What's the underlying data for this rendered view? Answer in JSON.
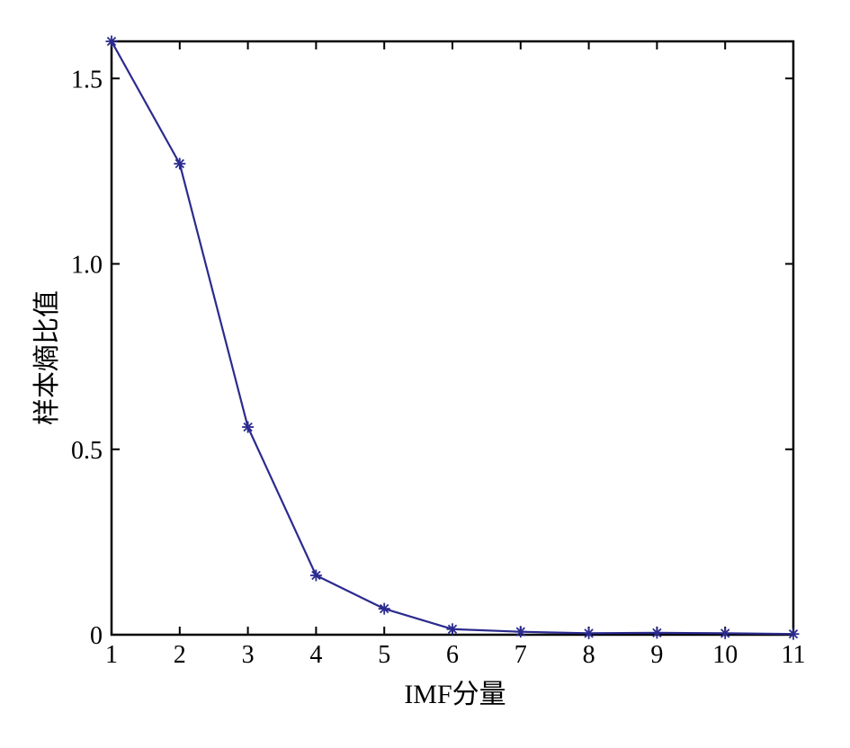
{
  "chart_data": {
    "type": "line",
    "title": "",
    "xlabel": "IMF分量",
    "ylabel": "样本熵比值",
    "x": [
      1,
      2,
      3,
      4,
      5,
      6,
      7,
      8,
      9,
      10,
      11
    ],
    "series": [
      {
        "values": [
          1.6,
          1.27,
          0.56,
          0.16,
          0.07,
          0.015,
          0.008,
          0.004,
          0.005,
          0.004,
          0.002
        ]
      }
    ],
    "xlim": [
      1,
      11
    ],
    "ylim": [
      0,
      1.6
    ],
    "xticks": [
      1,
      2,
      3,
      4,
      5,
      6,
      7,
      8,
      9,
      10,
      11
    ],
    "xtick_labels": [
      "1",
      "2",
      "3",
      "4",
      "5",
      "6",
      "7",
      "8",
      "9",
      "10",
      "11"
    ],
    "yticks": [
      0,
      0.5,
      1.0,
      1.5
    ],
    "ytick_labels": [
      "0",
      "0.5",
      "1.0",
      "1.5"
    ],
    "grid": false,
    "marker": "asterisk",
    "colors": {
      "series": "#2b2b8f",
      "axis": "#000000"
    }
  }
}
